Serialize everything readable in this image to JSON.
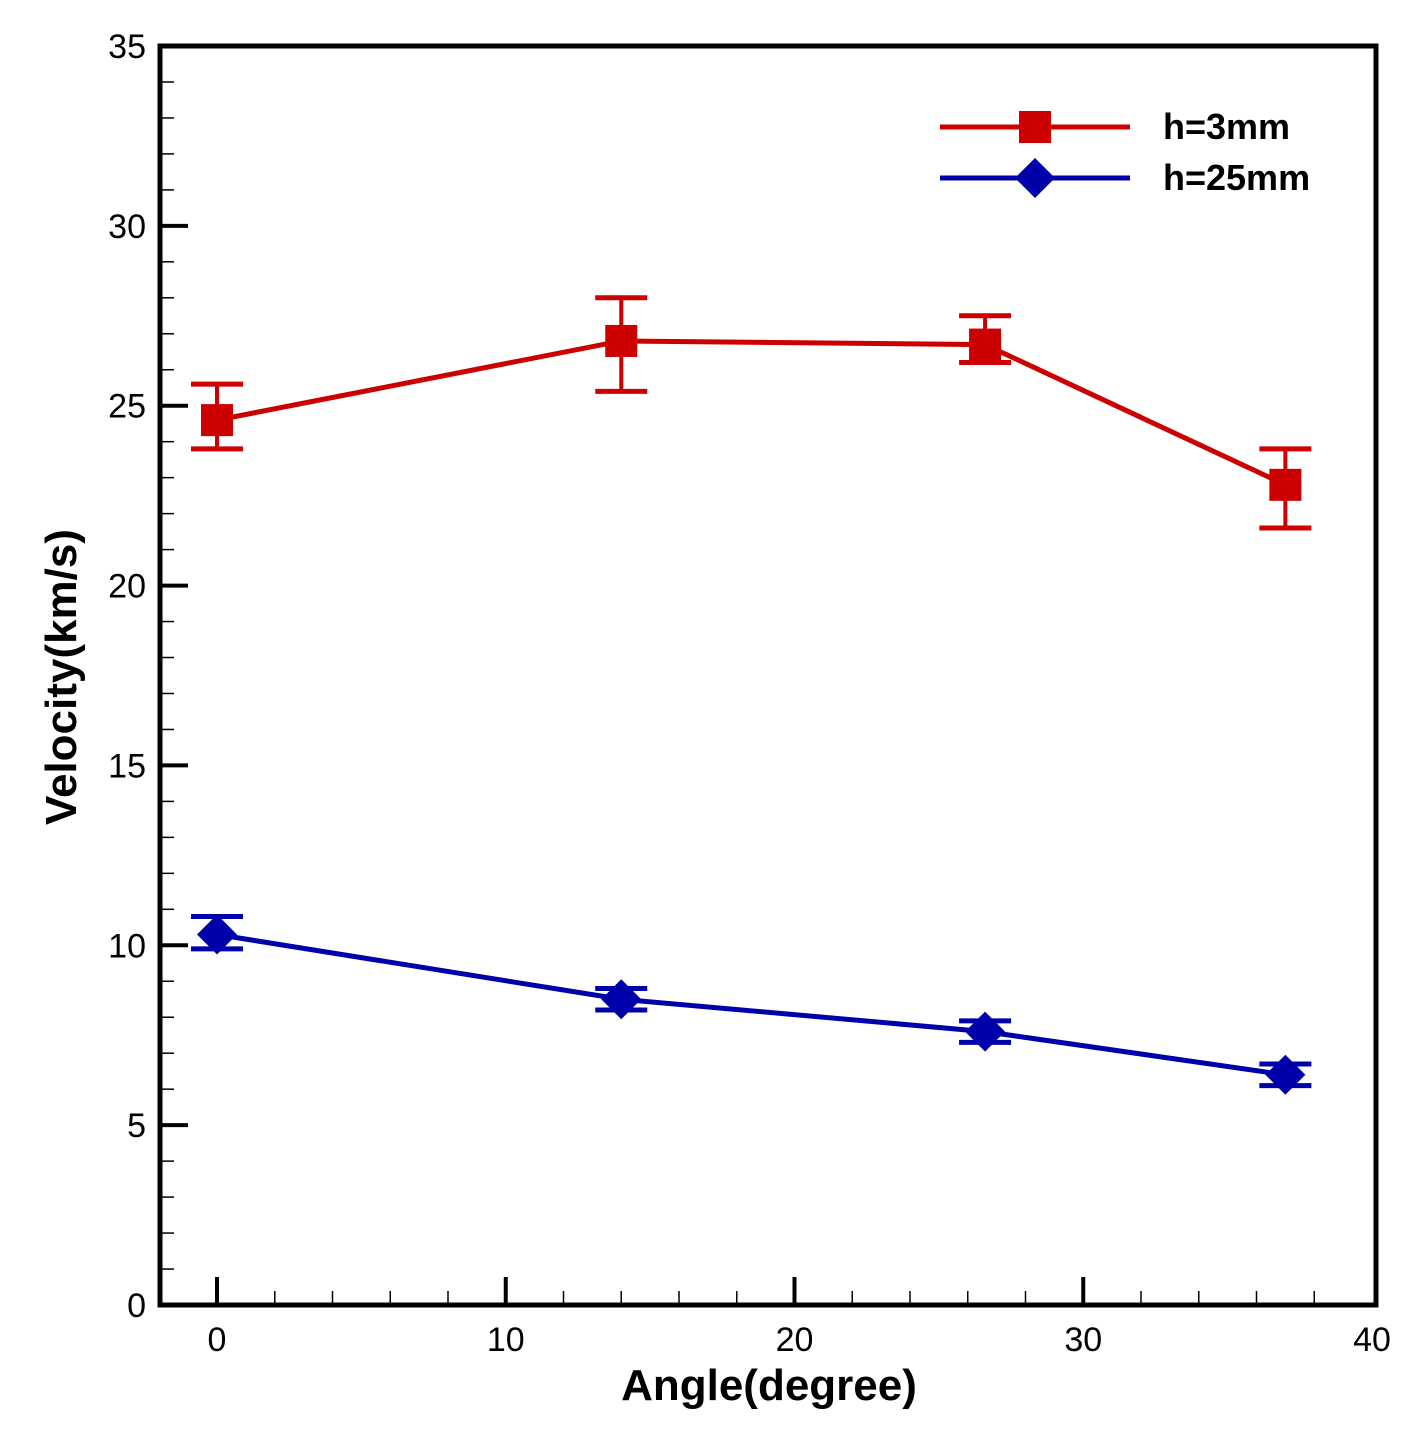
{
  "chart_data": {
    "type": "line",
    "title": "",
    "xlabel": "Angle(degree)",
    "ylabel": "Velocity(km/s)",
    "xlim": [
      -2,
      40
    ],
    "ylim": [
      0,
      35
    ],
    "xticks": [
      "0",
      "10",
      "20",
      "30",
      "40"
    ],
    "yticks": [
      "0",
      "5",
      "10",
      "15",
      "20",
      "25",
      "30",
      "35"
    ],
    "legend_position": "top-right",
    "grid": false,
    "series": [
      {
        "name": "h=3mm",
        "color": "#cc0000",
        "marker": "square",
        "x": [
          0,
          14,
          26.6,
          37
        ],
        "y": [
          24.6,
          26.8,
          26.7,
          22.8
        ],
        "err_low": [
          23.8,
          25.4,
          26.2,
          21.6
        ],
        "err_high": [
          25.6,
          28.0,
          27.5,
          23.8
        ]
      },
      {
        "name": "h=25mm",
        "color": "#0000aa",
        "marker": "diamond",
        "x": [
          0,
          14,
          26.6,
          37
        ],
        "y": [
          10.3,
          8.5,
          7.6,
          6.4
        ],
        "err_low": [
          9.9,
          8.2,
          7.3,
          6.1
        ],
        "err_high": [
          10.8,
          8.8,
          7.9,
          6.7
        ]
      }
    ]
  }
}
